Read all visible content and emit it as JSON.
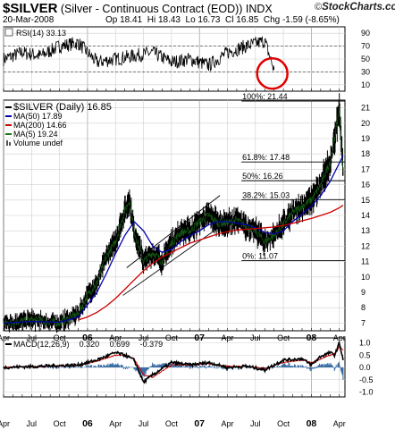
{
  "header": {
    "symbol": "$SILVER",
    "description": "(Silver - Continuous Contract (EOD))",
    "exchange": "INDX",
    "date": "20-Mar-2008",
    "open": "Op 18.41",
    "high": "Hi 18.43",
    "low": "Lo 16.73",
    "close": "Cl 16.85",
    "change": "Chg -1.59 (-8.65%)",
    "logo_text": "StockCharts.com",
    "logo_c": "©"
  },
  "chart_data": [
    {
      "type": "line",
      "panel": "RSI",
      "legend": "RSI(14) 33.13",
      "ylim": [
        0,
        100
      ],
      "yticks": [
        10,
        30,
        50,
        70,
        90
      ],
      "reference_lines": [
        30,
        70
      ],
      "annotation": "red circle around latest RSI reading",
      "series": [
        {
          "name": "RSI(14)",
          "last": 33.13,
          "x": [
            0,
            2,
            4,
            6,
            8,
            10,
            12,
            14,
            16,
            18,
            20,
            22,
            24,
            26,
            28,
            29
          ],
          "values": [
            50,
            60,
            55,
            70,
            75,
            45,
            50,
            55,
            60,
            45,
            50,
            40,
            60,
            70,
            78,
            33
          ]
        }
      ]
    },
    {
      "type": "line",
      "panel": "Price",
      "ylabel": "",
      "ylim": [
        6.5,
        21.5
      ],
      "yticks": [
        7,
        8,
        9,
        10,
        11,
        12,
        13,
        14,
        15,
        16,
        17,
        18,
        19,
        20,
        21
      ],
      "x_ticks": [
        "Apr",
        "Jul",
        "Oct",
        "06",
        "Apr",
        "Jul",
        "Oct",
        "07",
        "Apr",
        "Jul",
        "Oct",
        "08",
        "Apr"
      ],
      "x_tick_month_index": [
        0,
        3,
        6,
        9,
        12,
        15,
        18,
        21,
        24,
        27,
        30,
        33,
        36
      ],
      "legend": [
        "$SILVER (Daily) 16.85",
        "MA(50) 17.89",
        "MA(200) 14.66",
        "MA(5) 19.24",
        "Volume undef"
      ],
      "series": [
        {
          "name": "$SILVER (Daily)",
          "color": "#000000",
          "x": [
            0,
            3,
            6,
            8,
            9,
            10,
            11,
            12,
            13,
            13.5,
            14,
            15,
            16,
            17,
            18,
            19,
            20,
            21,
            22,
            23,
            24,
            25,
            26,
            27,
            28,
            29,
            30,
            31,
            32,
            33,
            34,
            35,
            35.5,
            36,
            36.4
          ],
          "values": [
            7.0,
            7.2,
            7.0,
            7.6,
            8.8,
            9.6,
            11.3,
            12.3,
            14.3,
            15.0,
            13.0,
            11.0,
            11.6,
            11.0,
            12.2,
            12.9,
            13.0,
            13.6,
            14.0,
            13.5,
            13.5,
            13.7,
            13.3,
            13.0,
            12.3,
            12.7,
            13.4,
            14.2,
            14.6,
            15.0,
            16.0,
            17.5,
            19.0,
            21.0,
            16.85
          ]
        },
        {
          "name": "MA(50)",
          "color": "#0000aa",
          "last": 17.89,
          "x": [
            0,
            3,
            6,
            8,
            9,
            10,
            11,
            12,
            13,
            14,
            15,
            16,
            17,
            18,
            19,
            20,
            21,
            22,
            23,
            24,
            25,
            26,
            27,
            28,
            29,
            30,
            31,
            32,
            33,
            34,
            35,
            36,
            36.4
          ],
          "values": [
            7.0,
            7.1,
            7.05,
            7.4,
            8.2,
            9.0,
            10.2,
            11.5,
            12.7,
            13.6,
            13.0,
            12.0,
            11.6,
            11.8,
            12.3,
            12.7,
            13.0,
            13.4,
            13.6,
            13.6,
            13.5,
            13.4,
            13.2,
            12.9,
            12.8,
            13.0,
            13.6,
            14.1,
            14.6,
            15.3,
            16.2,
            17.4,
            17.89
          ]
        },
        {
          "name": "MA(200)",
          "color": "#cc0000",
          "last": 14.66,
          "x": [
            8,
            9,
            10,
            11,
            12,
            13,
            14,
            15,
            16,
            17,
            18,
            19,
            20,
            21,
            22,
            23,
            24,
            25,
            26,
            27,
            28,
            29,
            30,
            31,
            32,
            33,
            34,
            35,
            36,
            36.4
          ],
          "values": [
            7.2,
            7.4,
            7.7,
            8.1,
            8.6,
            9.2,
            9.8,
            10.4,
            10.9,
            11.3,
            11.6,
            11.9,
            12.2,
            12.4,
            12.6,
            12.8,
            12.95,
            13.05,
            13.1,
            13.15,
            13.2,
            13.25,
            13.35,
            13.5,
            13.65,
            13.8,
            14.0,
            14.2,
            14.5,
            14.66
          ]
        }
      ],
      "fibonacci": [
        {
          "label": "100%: 21.44",
          "value": 21.44
        },
        {
          "label": "61.8%: 17.48",
          "value": 17.48
        },
        {
          "label": "50%: 16.26",
          "value": 16.26
        },
        {
          "label": "38.2%: 15.03",
          "value": 15.03
        },
        {
          "label": "0%: 11.07",
          "value": 11.07
        }
      ],
      "trend_channel": "rising channel drawn from Jun 2006 to Apr 2007"
    },
    {
      "type": "line",
      "panel": "MACD",
      "legend": [
        "MACD(12,26,9)",
        "0.320",
        "0.699",
        "-0.379"
      ],
      "legend_colors": [
        "#000000",
        "#000000",
        "#cc0000",
        "#3a6ea5"
      ],
      "ylim": [
        -1.2,
        1.2
      ],
      "yticks": [
        -1.0,
        -0.5,
        0.0,
        0.5,
        1.0
      ],
      "series": [
        {
          "name": "MACD",
          "color": "#000000",
          "last": 0.32,
          "x": [
            0,
            4,
            8,
            10,
            12,
            13,
            14,
            15,
            16,
            18,
            20,
            22,
            24,
            26,
            28,
            30,
            32,
            33,
            34,
            35,
            35.5,
            36,
            36.4
          ],
          "values": [
            0.0,
            0.05,
            0.1,
            0.3,
            0.6,
            0.5,
            0.3,
            -0.6,
            -0.3,
            0.2,
            0.1,
            0.2,
            0.0,
            0.05,
            -0.1,
            0.3,
            0.35,
            0.1,
            0.45,
            0.6,
            0.5,
            1.0,
            0.32
          ]
        },
        {
          "name": "Signal",
          "color": "#cc0000",
          "last": 0.699,
          "x": [
            0,
            4,
            8,
            10,
            12,
            13,
            14,
            15,
            16,
            18,
            20,
            22,
            24,
            26,
            28,
            30,
            32,
            33,
            34,
            35,
            35.5,
            36,
            36.4
          ],
          "values": [
            0.0,
            0.04,
            0.08,
            0.25,
            0.5,
            0.5,
            0.35,
            -0.3,
            -0.4,
            0.1,
            0.1,
            0.15,
            0.05,
            0.05,
            -0.05,
            0.2,
            0.3,
            0.2,
            0.35,
            0.5,
            0.55,
            0.85,
            0.699
          ]
        },
        {
          "name": "Histogram",
          "color": "#3a6ea5",
          "last": -0.379
        }
      ]
    }
  ]
}
